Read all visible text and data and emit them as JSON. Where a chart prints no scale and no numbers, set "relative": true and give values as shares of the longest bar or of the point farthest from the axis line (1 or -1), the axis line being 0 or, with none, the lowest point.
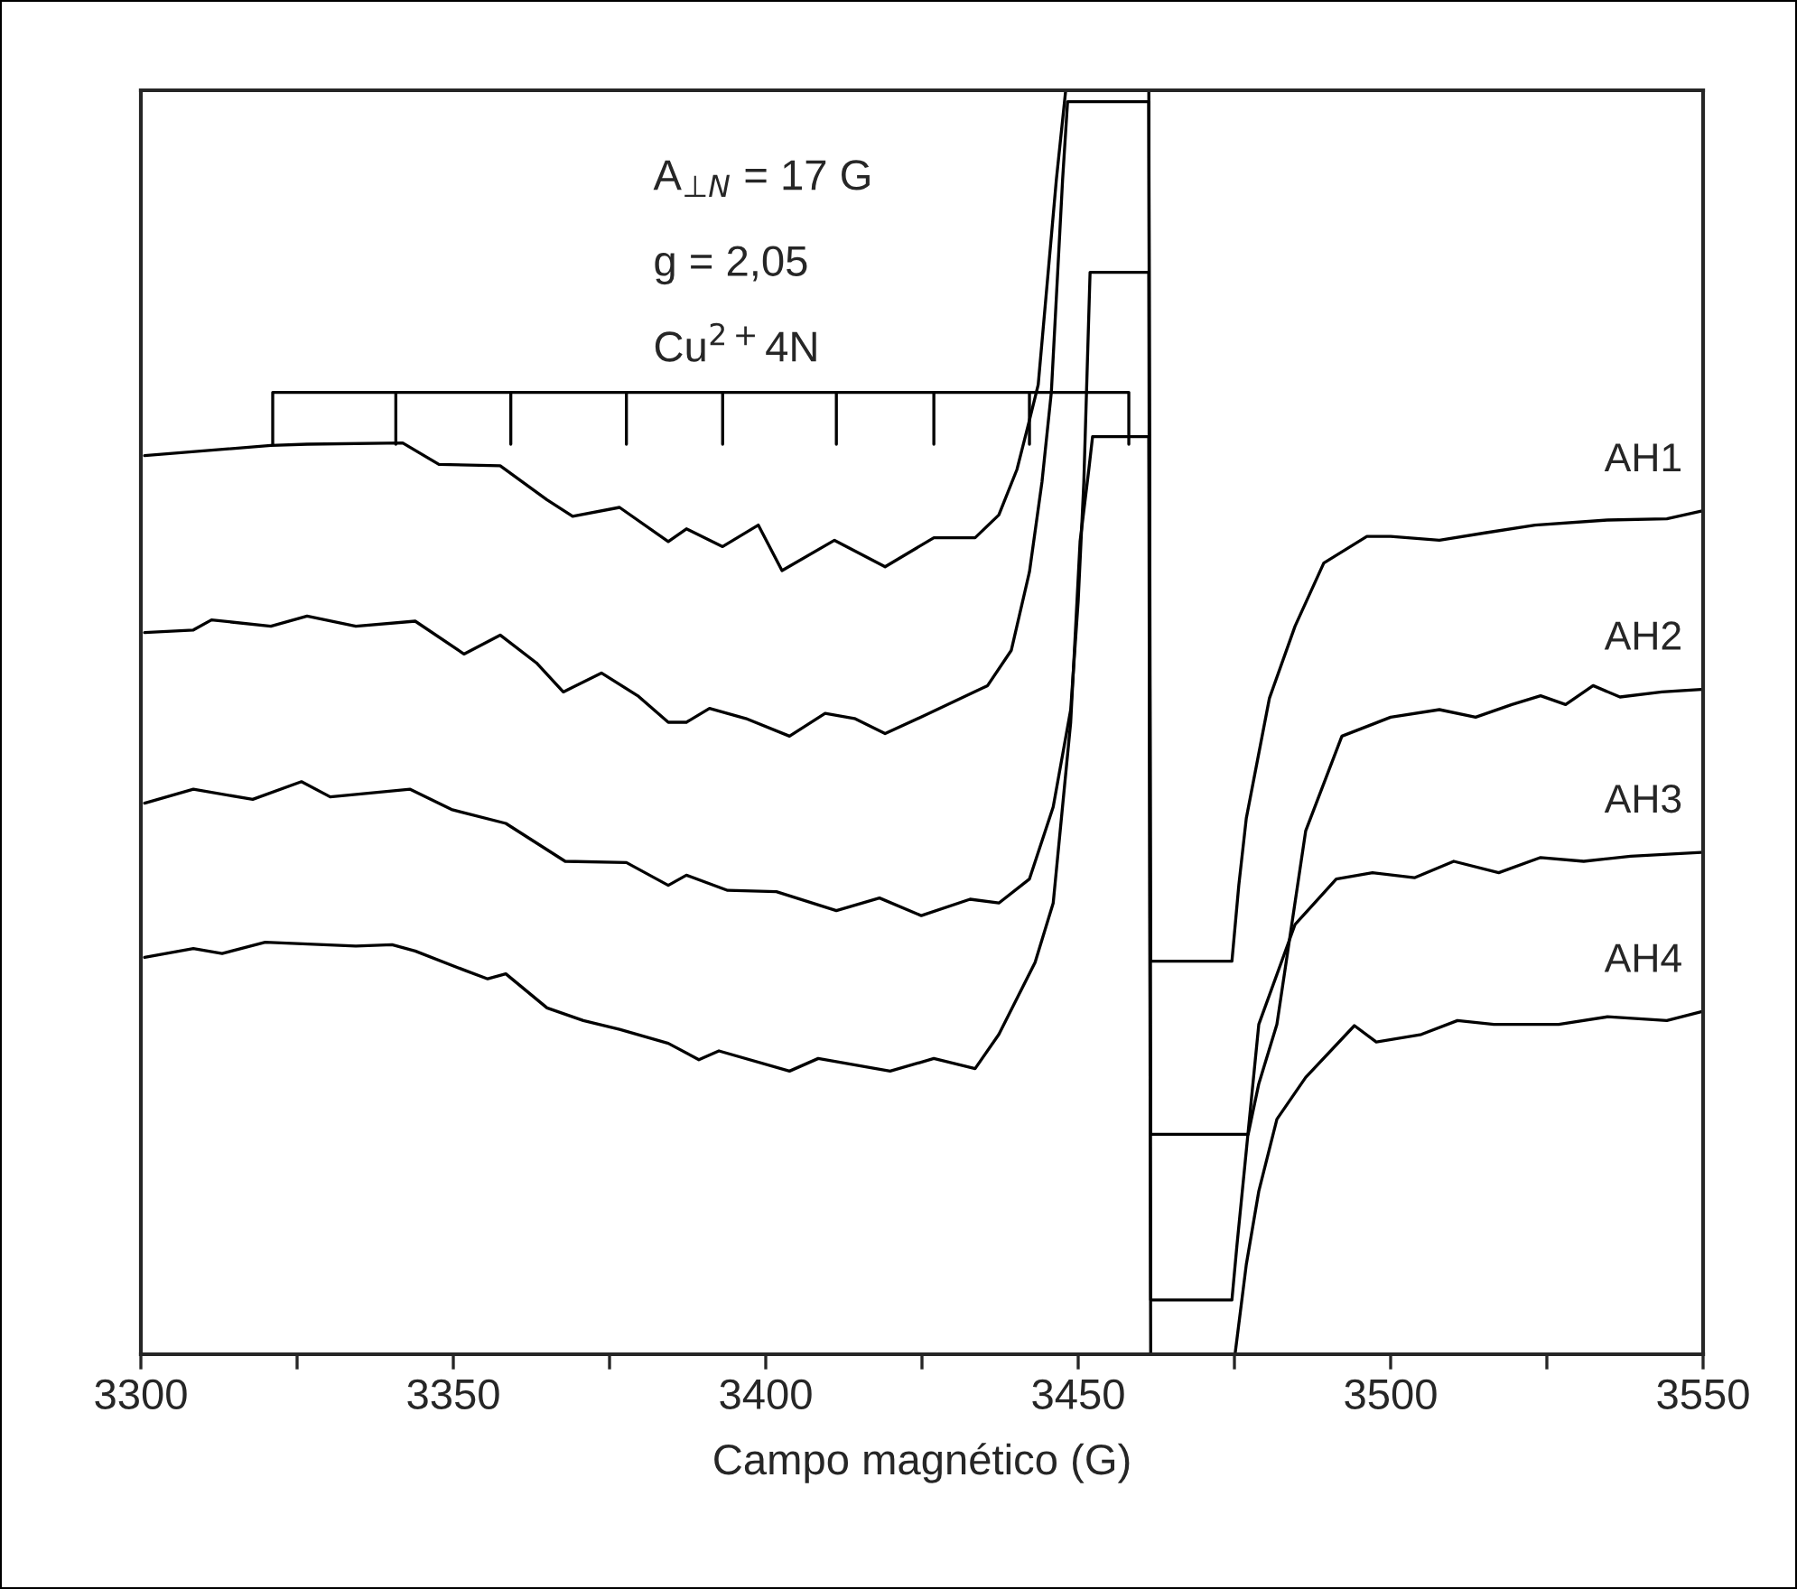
{
  "chart_data": {
    "type": "line",
    "relative": true,
    "xlabel": "Campo magnético (G)",
    "xlim": [
      3300,
      3550
    ],
    "xticks": [
      3300,
      {
        "value": 3325,
        "label": null
      },
      3350,
      {
        "value": 3375,
        "label": null
      },
      3400,
      {
        "value": 3425,
        "label": null
      },
      3450,
      {
        "value": 3475,
        "label": null
      },
      3500,
      {
        "value": 3525,
        "label": null
      },
      3550
    ],
    "grid": false,
    "legend": false,
    "marker": "none",
    "line_style": "solid",
    "annotations": [
      "A$_{⊥N}$ = 17 G",
      "g = 2,05",
      "Cu$^{2+}$4N"
    ],
    "series": [
      {
        "name": "AH1",
        "color": "#000000",
        "x": [
          3300.6,
          3320.8,
          3326.6,
          3341.9,
          3347.7,
          3357.5,
          3365,
          3369.1,
          3376.6,
          3384.4,
          3387.3,
          3393.1,
          3398.8,
          3402.6,
          3411,
          3419.1,
          3426.9,
          3433.5,
          3437.3,
          3440.2,
          3442.2,
          3443.6,
          3446.5,
          3448,
          3461.3,
          3461.6,
          3474.6,
          3475.7,
          3476.9,
          3480.6,
          3484.7,
          3489.3,
          3496.2,
          3500,
          3507.8,
          3515.3,
          3523.1,
          3534.7,
          3544.2,
          3549.7
        ],
        "values": [
          0.711,
          0.719,
          0.72,
          0.721,
          0.704,
          0.703,
          0.676,
          0.663,
          0.67,
          0.643,
          0.653,
          0.639,
          0.656,
          0.62,
          0.644,
          0.623,
          0.646,
          0.646,
          0.664,
          0.7,
          0.739,
          0.767,
          0.929,
          1,
          1,
          0.311,
          0.311,
          0.371,
          0.424,
          0.519,
          0.576,
          0.626,
          0.647,
          0.647,
          0.644,
          0.65,
          0.656,
          0.66,
          0.661,
          0.667
        ]
      },
      {
        "name": "AH2",
        "color": "#000000",
        "x": [
          3300.6,
          3308.4,
          3311.3,
          3320.8,
          3326.6,
          3334.4,
          3343.9,
          3351.7,
          3357.5,
          3363.3,
          3367.6,
          3373.7,
          3379.5,
          3384.4,
          3387.3,
          3391,
          3396.8,
          3403.8,
          3409.5,
          3414.2,
          3419.1,
          3425.7,
          3435.5,
          3439.3,
          3442.2,
          3444.2,
          3445.7,
          3447.5,
          3448.3,
          3461.3,
          3461.6,
          3477.2,
          3478.9,
          3481.8,
          3486.4,
          3492.2,
          3500,
          3507.8,
          3513.6,
          3519.4,
          3524,
          3528,
          3532.4,
          3536.7,
          3543.4,
          3549.7
        ],
        "values": [
          0.571,
          0.573,
          0.581,
          0.576,
          0.584,
          0.576,
          0.58,
          0.554,
          0.569,
          0.547,
          0.524,
          0.539,
          0.521,
          0.5,
          0.5,
          0.511,
          0.503,
          0.489,
          0.507,
          0.503,
          0.491,
          0.506,
          0.529,
          0.557,
          0.619,
          0.69,
          0.761,
          0.929,
          0.991,
          0.991,
          0.174,
          0.174,
          0.214,
          0.261,
          0.414,
          0.489,
          0.504,
          0.51,
          0.504,
          0.514,
          0.521,
          0.514,
          0.529,
          0.52,
          0.524,
          0.526
        ]
      },
      {
        "name": "AH3",
        "color": "#000000",
        "x": [
          3300.6,
          3308.4,
          3317.9,
          3325.7,
          3330.3,
          3343.1,
          3349.7,
          3358.4,
          3367.9,
          3377.7,
          3384.4,
          3387.3,
          3393.9,
          3401.7,
          3411.3,
          3418.2,
          3424.9,
          3432.7,
          3437.3,
          3442.2,
          3446,
          3448.8,
          3450,
          3450.9,
          3451.9,
          3461.3,
          3461.6,
          3474.6,
          3475.4,
          3478.9,
          3484.7,
          3491.3,
          3497.1,
          3503.8,
          3510.1,
          3517.3,
          3524,
          3530.9,
          3538.4,
          3549.7
        ],
        "values": [
          0.436,
          0.447,
          0.439,
          0.453,
          0.441,
          0.447,
          0.431,
          0.42,
          0.39,
          0.389,
          0.371,
          0.379,
          0.367,
          0.366,
          0.351,
          0.361,
          0.347,
          0.36,
          0.357,
          0.376,
          0.433,
          0.51,
          0.596,
          0.69,
          0.856,
          0.856,
          0.043,
          0.043,
          0.086,
          0.261,
          0.34,
          0.376,
          0.381,
          0.377,
          0.39,
          0.381,
          0.393,
          0.39,
          0.394,
          0.397
        ]
      },
      {
        "name": "AH4",
        "color": "#000000",
        "x": [
          3300.6,
          3308.4,
          3313,
          3319.9,
          3334.4,
          3340.2,
          3343.9,
          3351.7,
          3355.5,
          3358.4,
          3365,
          3370.8,
          3376.6,
          3384.4,
          3389.3,
          3392.5,
          3403.8,
          3408.4,
          3419.9,
          3426.9,
          3433.5,
          3437.3,
          3443.1,
          3446,
          3448.8,
          3450.3,
          3451.7,
          3452.3,
          3461.3,
          3461.6,
          3475.1,
          3476.9,
          3478.9,
          3481.8,
          3486.4,
          3494.2,
          3497.7,
          3504.9,
          3510.7,
          3516.5,
          3523.1,
          3526.9,
          3534.7,
          3544.2,
          3549.7
        ],
        "values": [
          0.314,
          0.321,
          0.317,
          0.326,
          0.323,
          0.324,
          0.319,
          0.304,
          0.297,
          0.301,
          0.274,
          0.264,
          0.257,
          0.246,
          0.233,
          0.24,
          0.224,
          0.234,
          0.224,
          0.234,
          0.226,
          0.253,
          0.31,
          0.357,
          0.5,
          0.643,
          0.7,
          0.726,
          0.726,
          0,
          0,
          0.071,
          0.129,
          0.186,
          0.219,
          0.26,
          0.247,
          0.253,
          0.264,
          0.261,
          0.261,
          0.261,
          0.267,
          0.264,
          0.271
        ]
      },
      {
        "color": "#000000",
        "x": [
          3321.1,
          3321.1,
          3340.8,
          3340.8,
          3340.8,
          3359.2,
          3359.2,
          3359.2,
          3377.7,
          3377.7,
          3377.7,
          3393.1,
          3393.1,
          3393.1,
          3411.3,
          3411.3,
          3411.3,
          3426.9,
          3426.9,
          3426.9,
          3442.2,
          3442.2,
          3442.2,
          3458.1,
          3458.1
        ],
        "values": [
          0.72,
          0.761,
          0.761,
          0.72,
          0.761,
          0.761,
          0.72,
          0.761,
          0.761,
          0.72,
          0.761,
          0.761,
          0.72,
          0.761,
          0.761,
          0.72,
          0.761,
          0.761,
          0.72,
          0.761,
          0.761,
          0.72,
          0.761,
          0.761,
          0.72
        ]
      }
    ]
  }
}
